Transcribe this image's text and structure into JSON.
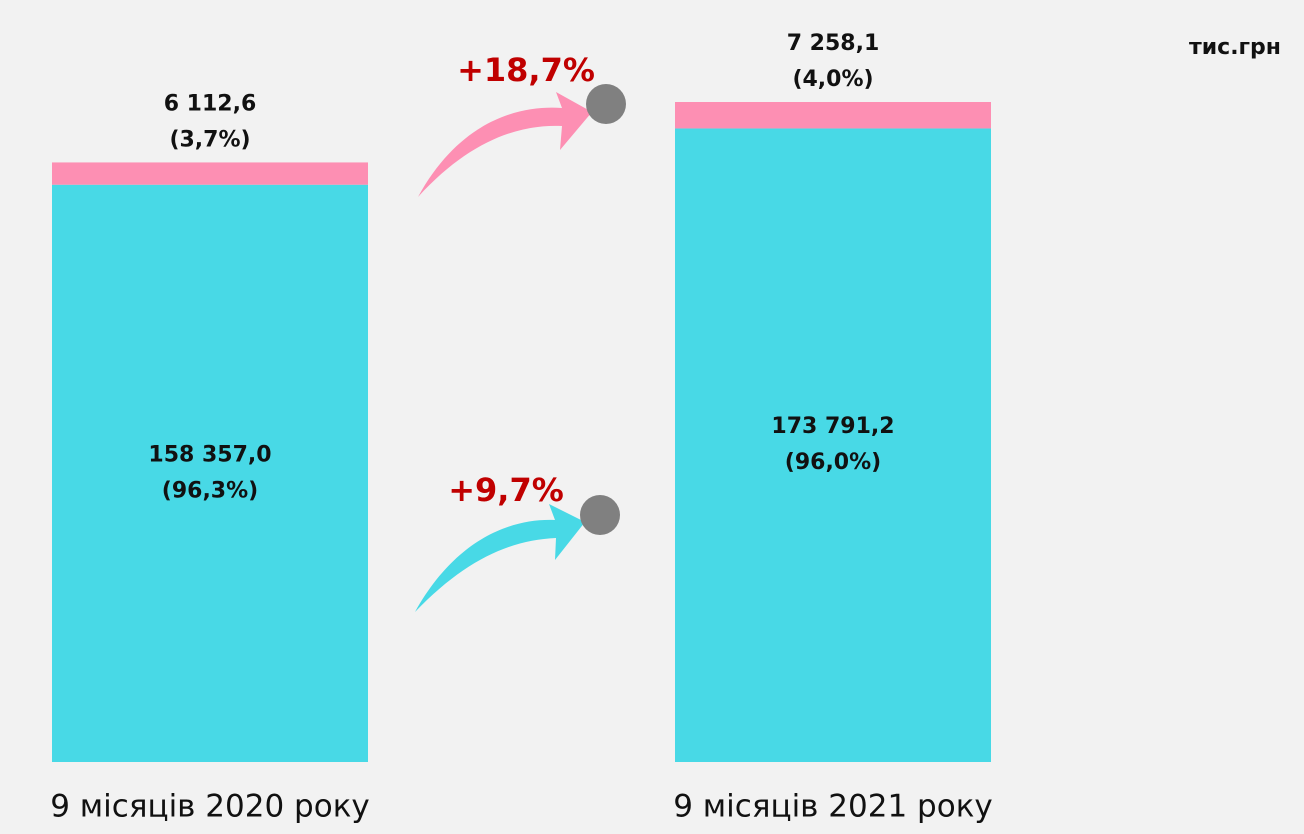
{
  "chart_data": {
    "type": "stacked_bar",
    "unit": "тис.грн",
    "categories": [
      "9 місяців 2020 року",
      "9 місяців 2021 року"
    ],
    "series": [
      {
        "color": "#48d9e6",
        "values": [
          158357.0,
          173791.2
        ],
        "value_labels": [
          "158 357,0",
          "173 791,2"
        ],
        "shares": [
          96.3,
          96.0
        ],
        "share_labels": [
          "(96,3%)",
          "(96,0%)"
        ]
      },
      {
        "color": "#fd8fb3",
        "values": [
          6112.6,
          7258.1
        ],
        "value_labels": [
          "6 112,6",
          "7 258,1"
        ],
        "shares": [
          3.7,
          4.0
        ],
        "share_labels": [
          "(3,7%)",
          "(4,0%)"
        ]
      }
    ],
    "growth": [
      {
        "value": 9.7,
        "label": "+9,7%"
      },
      {
        "value": 18.7,
        "label": "+18,7%"
      }
    ]
  }
}
